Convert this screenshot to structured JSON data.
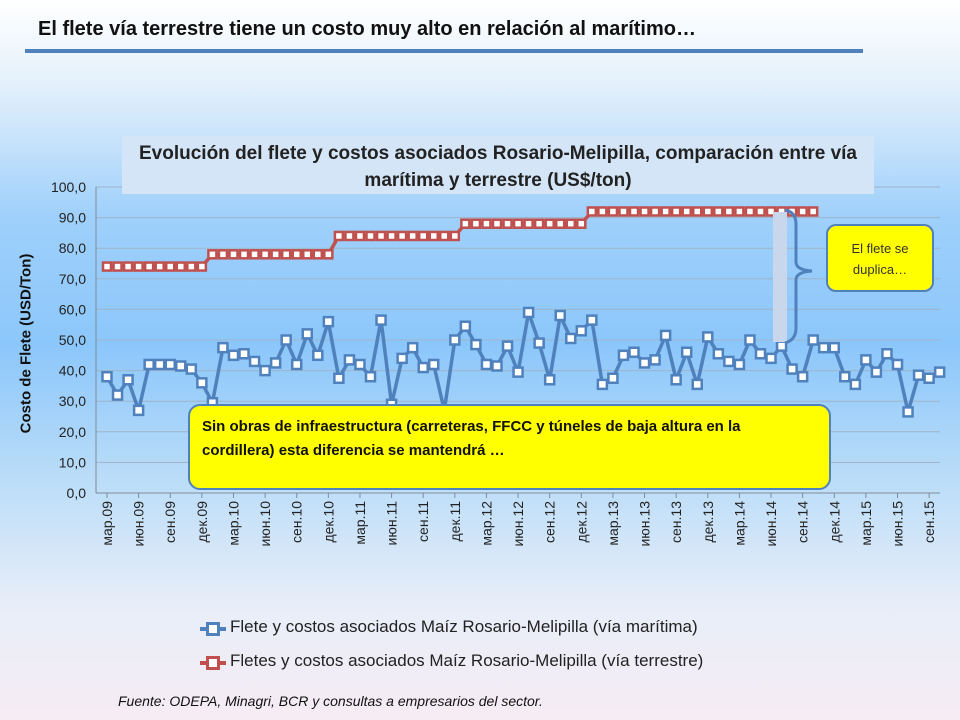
{
  "slide": {
    "title": "El flete vía terrestre tiene un costo muy alto en relación al marítimo…",
    "source": "Fuente: ODEPA, Minagri, BCR y consultas a empresarios del sector."
  },
  "callout": {
    "text": "El flete se duplica…"
  },
  "note": {
    "text": "Sin obras de infraestructura (carreteras, FFCC y túneles de baja altura en la cordillera) esta diferencia se mantendrá …"
  },
  "colors": {
    "maritime": "#4f81bd",
    "terrestrial": "#c0504d",
    "bracket": "#4f81bd"
  },
  "chart_data": {
    "type": "line",
    "title": "Evolución del flete y costos asociados Rosario-Melipilla, comparación entre vía marítima y terrestre (US$/ton)",
    "ylabel": "Costo de Flete (USD/Ton)",
    "xlabel": "",
    "ylim": [
      0,
      100
    ],
    "yticks": [
      "0,0",
      "10,0",
      "20,0",
      "30,0",
      "40,0",
      "50,0",
      "60,0",
      "70,0",
      "80,0",
      "90,0",
      "100,0"
    ],
    "x_tick_labels": [
      "мар.09",
      "июн.09",
      "сен.09",
      "дек.09",
      "мар.10",
      "июн.10",
      "сен.10",
      "дек.10",
      "мар.11",
      "июн.11",
      "сен.11",
      "дек.11",
      "мар.12",
      "июн.12",
      "сен.12",
      "дек.12",
      "мар.13",
      "июн.13",
      "сен.13",
      "дек.13",
      "мар.14",
      "июн.14",
      "сен.14",
      "дек.14",
      "мар.15",
      "июн.15",
      "сен.15"
    ],
    "grid": true,
    "legend_position": "bottom",
    "series": [
      {
        "name": "Flete y costos asociados Maíz Rosario-Melipilla (vía marítima)",
        "values": [
          38.0,
          32.0,
          37.0,
          27.0,
          42.0,
          42.0,
          42.0,
          41.5,
          40.5,
          36.0,
          29.5,
          47.5,
          45.0,
          45.5,
          43.0,
          40.0,
          42.5,
          50.0,
          42.0,
          52.0,
          45.0,
          56.0,
          37.5,
          43.5,
          42.0,
          38.0,
          56.5,
          29.0,
          44.0,
          47.5,
          41.0,
          42.0,
          27.0,
          50.0,
          54.5,
          48.5,
          42.0,
          41.5,
          48.0,
          39.5,
          59.0,
          49.0,
          37.0,
          58.0,
          50.5,
          53.0,
          56.5,
          35.5,
          37.5,
          45.0,
          46.0,
          42.5,
          43.5,
          51.5,
          37.0,
          46.0,
          35.5,
          51.0,
          45.5,
          43.0,
          42.0,
          50.0,
          45.5,
          44.0,
          48.0,
          40.5,
          38.0,
          50.0,
          47.5,
          47.5,
          38.0,
          35.5,
          43.5,
          39.5,
          45.5,
          42.0,
          26.5,
          38.5,
          37.5,
          39.5
        ]
      },
      {
        "name": "Fletes y costos asociados Maíz Rosario-Melipilla (vía terrestre)",
        "values": [
          74,
          74,
          74,
          74,
          74,
          74,
          74,
          74,
          74,
          74,
          78,
          78,
          78,
          78,
          78,
          78,
          78,
          78,
          78,
          78,
          78,
          78,
          84,
          84,
          84,
          84,
          84,
          84,
          84,
          84,
          84,
          84,
          84,
          84,
          88,
          88,
          88,
          88,
          88,
          88,
          88,
          88,
          88,
          88,
          88,
          88,
          92,
          92,
          92,
          92,
          92,
          92,
          92,
          92,
          92,
          92,
          92,
          92,
          92,
          92,
          92,
          92,
          92,
          92,
          92,
          92,
          92,
          92
        ]
      }
    ]
  }
}
